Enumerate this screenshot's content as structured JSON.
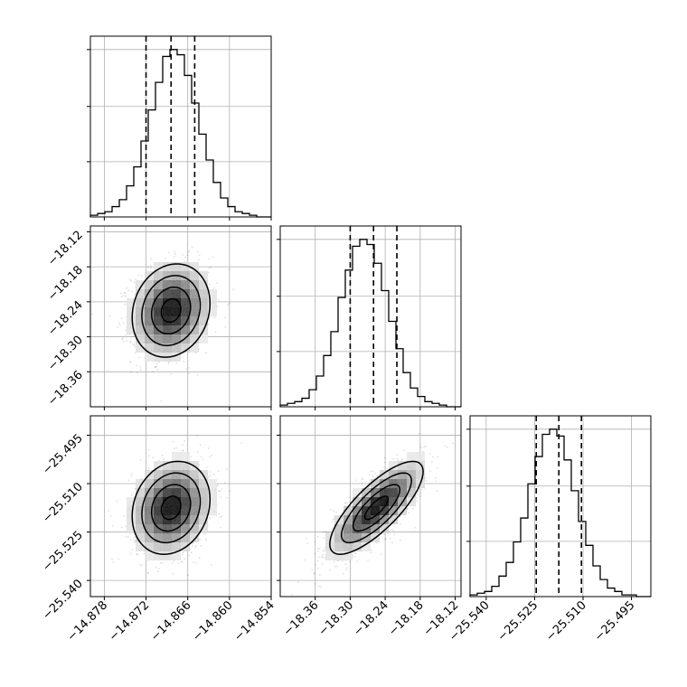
{
  "chart_data": {
    "type": "corner",
    "grid": true,
    "parameters": [
      {
        "range": [
          -14.88,
          -14.854
        ],
        "ticks": [
          -14.878,
          -14.872,
          -14.866,
          -14.86,
          -14.854
        ],
        "tick_labels": [
          "−14.878",
          "−14.872",
          "−14.866",
          "−14.860",
          "−14.854"
        ],
        "quantiles": [
          -14.872,
          -14.8684,
          -14.865
        ],
        "hist": [
          1,
          2,
          3,
          6,
          10,
          18,
          29,
          44,
          62,
          78,
          93,
          97,
          94,
          82,
          66,
          48,
          33,
          20,
          11,
          6,
          3,
          2,
          1,
          0,
          0
        ]
      },
      {
        "range": [
          -18.42,
          -18.11
        ],
        "ticks": [
          -18.36,
          -18.3,
          -18.24,
          -18.18,
          -18.12
        ],
        "tick_labels": [
          "−18.36",
          "−18.30",
          "−18.24",
          "−18.18",
          "−18.12"
        ],
        "quantiles": [
          -18.3,
          -18.26,
          -18.22
        ],
        "hist": [
          1,
          2,
          3,
          5,
          10,
          18,
          30,
          44,
          64,
          80,
          94,
          98,
          95,
          84,
          68,
          50,
          34,
          20,
          11,
          6,
          3,
          2,
          1,
          0,
          0
        ]
      },
      {
        "range": [
          -25.545,
          -25.489
        ],
        "ticks": [
          -25.54,
          -25.525,
          -25.51,
          -25.495
        ],
        "tick_labels": [
          "−25.540",
          "−25.525",
          "−25.510",
          "−25.495"
        ],
        "quantiles": [
          -25.5245,
          -25.5175,
          -25.5105
        ],
        "hist": [
          1,
          2,
          3,
          6,
          12,
          20,
          32,
          46,
          66,
          82,
          95,
          98,
          94,
          80,
          62,
          44,
          30,
          18,
          10,
          5,
          3,
          1,
          1,
          0,
          0
        ]
      }
    ],
    "pairs": [
      {
        "row": 1,
        "col": 0,
        "mean": [
          -14.8684,
          -18.255
        ],
        "std": [
          0.0028,
          0.04
        ],
        "corr": 0.15
      },
      {
        "row": 2,
        "col": 0,
        "mean": [
          -14.8684,
          -25.5175
        ],
        "std": [
          0.0028,
          0.0072
        ],
        "corr": 0.18
      },
      {
        "row": 2,
        "col": 1,
        "mean": [
          -18.255,
          -25.5175
        ],
        "std": [
          0.04,
          0.0072
        ],
        "corr": 0.78
      }
    ]
  }
}
